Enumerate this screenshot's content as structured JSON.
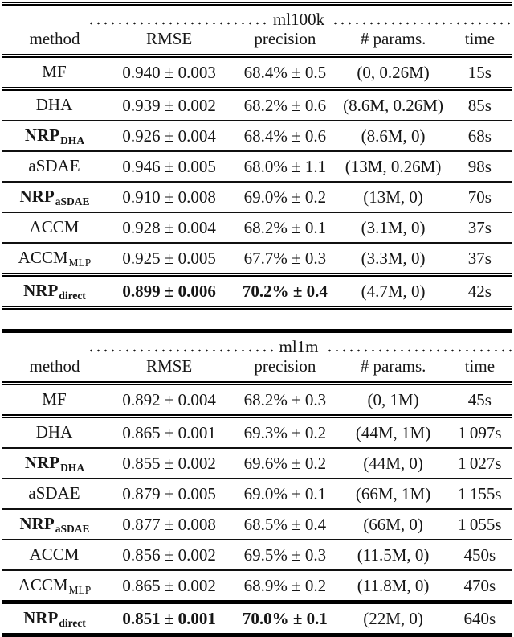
{
  "colors": {
    "background": "#ffffff",
    "text": "#161616",
    "rule": "#000000"
  },
  "tables": [
    {
      "dataset": "ml100k",
      "columns": [
        "method",
        "RMSE",
        "precision",
        "# params.",
        "time"
      ],
      "rows": [
        {
          "method_base": "MF",
          "method_sub": "",
          "method_bold": false,
          "rmse": "0.940 ± 0.003",
          "precision": "68.4% ± 0.5",
          "params": "(0, 0.26M)",
          "time": "15s",
          "values_bold": false,
          "rule_below": "double"
        },
        {
          "method_base": "DHA",
          "method_sub": "",
          "method_bold": false,
          "rmse": "0.939 ± 0.002",
          "precision": "68.2% ± 0.6",
          "params": "(8.6M, 0.26M)",
          "time": "85s",
          "values_bold": false,
          "rule_below": "single"
        },
        {
          "method_base": "NRP",
          "method_sub": "DHA",
          "method_bold": true,
          "rmse": "0.926 ± 0.004",
          "precision": "68.4% ± 0.6",
          "params": "(8.6M, 0)",
          "time": "68s",
          "values_bold": false,
          "rule_below": "single"
        },
        {
          "method_base": "aSDAE",
          "method_sub": "",
          "method_bold": false,
          "rmse": "0.946 ± 0.005",
          "precision": "68.0% ± 1.1",
          "params": "(13M, 0.26M)",
          "time": "98s",
          "values_bold": false,
          "rule_below": "single"
        },
        {
          "method_base": "NRP",
          "method_sub": "aSDAE",
          "method_bold": true,
          "rmse": "0.910 ± 0.008",
          "precision": "69.0% ± 0.2",
          "params": "(13M, 0)",
          "time": "70s",
          "values_bold": false,
          "rule_below": "single"
        },
        {
          "method_base": "ACCM",
          "method_sub": "",
          "method_bold": false,
          "rmse": "0.928 ± 0.004",
          "precision": "68.2% ± 0.1",
          "params": "(3.1M, 0)",
          "time": "37s",
          "values_bold": false,
          "rule_below": "single"
        },
        {
          "method_base": "ACCM",
          "method_sub": "MLP",
          "method_bold": false,
          "rmse": "0.925 ± 0.005",
          "precision": "67.7% ± 0.3",
          "params": "(3.3M, 0)",
          "time": "37s",
          "values_bold": false,
          "rule_below": "double"
        },
        {
          "method_base": "NRP",
          "method_sub": "direct",
          "method_bold": true,
          "rmse": "0.899 ± 0.006",
          "precision": "70.2% ± 0.4",
          "params": "(4.7M, 0)",
          "time": "42s",
          "values_bold": true,
          "rule_below": "double"
        }
      ]
    },
    {
      "dataset": "ml1m",
      "columns": [
        "method",
        "RMSE",
        "precision",
        "# params.",
        "time"
      ],
      "rows": [
        {
          "method_base": "MF",
          "method_sub": "",
          "method_bold": false,
          "rmse": "0.892 ± 0.004",
          "precision": "68.2% ± 0.3",
          "params": "(0, 1M)",
          "time": "45s",
          "values_bold": false,
          "rule_below": "double"
        },
        {
          "method_base": "DHA",
          "method_sub": "",
          "method_bold": false,
          "rmse": "0.865 ± 0.001",
          "precision": "69.3% ± 0.2",
          "params": "(44M, 1M)",
          "time": "1 097s",
          "values_bold": false,
          "rule_below": "single"
        },
        {
          "method_base": "NRP",
          "method_sub": "DHA",
          "method_bold": true,
          "rmse": "0.855 ± 0.002",
          "precision": "69.6% ± 0.2",
          "params": "(44M, 0)",
          "time": "1 027s",
          "values_bold": false,
          "rule_below": "single"
        },
        {
          "method_base": "aSDAE",
          "method_sub": "",
          "method_bold": false,
          "rmse": "0.879 ± 0.005",
          "precision": "69.0% ± 0.1",
          "params": "(66M, 1M)",
          "time": "1 155s",
          "values_bold": false,
          "rule_below": "single"
        },
        {
          "method_base": "NRP",
          "method_sub": "aSDAE",
          "method_bold": true,
          "rmse": "0.877 ± 0.008",
          "precision": "68.5% ± 0.4",
          "params": "(66M, 0)",
          "time": "1 055s",
          "values_bold": false,
          "rule_below": "single"
        },
        {
          "method_base": "ACCM",
          "method_sub": "",
          "method_bold": false,
          "rmse": "0.856 ± 0.002",
          "precision": "69.5% ± 0.3",
          "params": "(11.5M, 0)",
          "time": "450s",
          "values_bold": false,
          "rule_below": "single"
        },
        {
          "method_base": "ACCM",
          "method_sub": "MLP",
          "method_bold": false,
          "rmse": "0.865 ± 0.002",
          "precision": "68.9% ± 0.2",
          "params": "(11.8M, 0)",
          "time": "470s",
          "values_bold": false,
          "rule_below": "double"
        },
        {
          "method_base": "NRP",
          "method_sub": "direct",
          "method_bold": true,
          "rmse": "0.851 ± 0.001",
          "precision": "70.0% ± 0.1",
          "params": "(22M, 0)",
          "time": "640s",
          "values_bold": true,
          "rule_below": "double"
        }
      ]
    }
  ]
}
